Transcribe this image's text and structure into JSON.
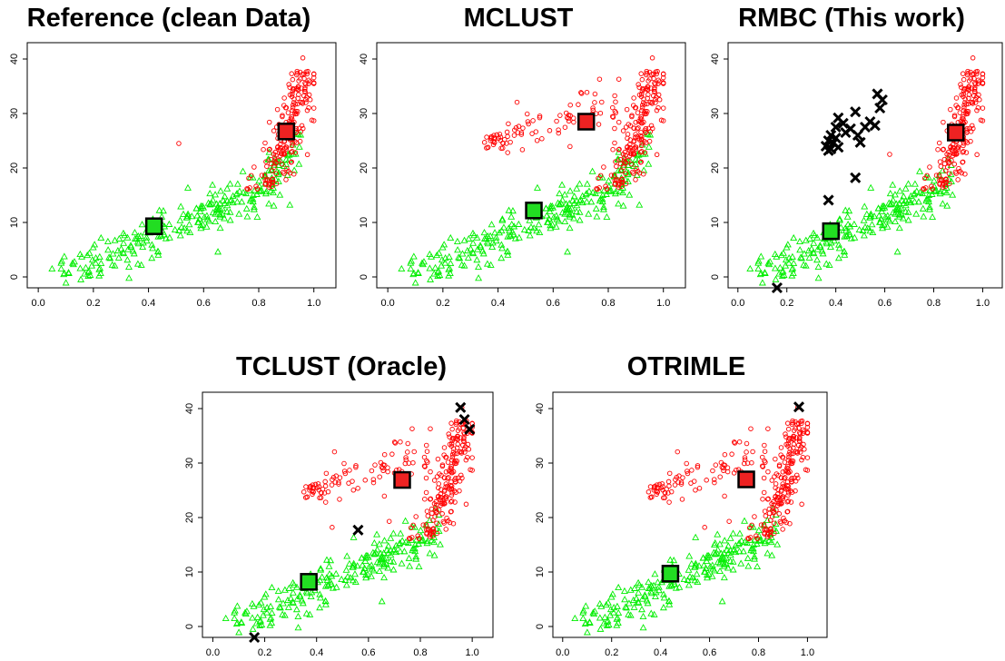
{
  "colors": {
    "cluster1": "#ff0000",
    "cluster2": "#00ee00",
    "center1_fill": "#ee2222",
    "center2_fill": "#22dd22",
    "outlier": "#000000"
  },
  "chart_data": [
    {
      "type": "scatter",
      "title": "Reference  (clean Data)",
      "xlim": [
        -0.04,
        1.08
      ],
      "ylim": [
        -2,
        43
      ],
      "xticks": [
        "0.0",
        "0.2",
        "0.4",
        "0.6",
        "0.8",
        "1.0"
      ],
      "yticks": [
        "0",
        "10",
        "20",
        "30",
        "40"
      ],
      "grid": false,
      "legend": "none",
      "green_cluster": "upper_extent",
      "red_cluster": "right_only",
      "centers": [
        {
          "cluster": "red",
          "x": 0.9,
          "y": 26.7
        },
        {
          "cluster": "green",
          "x": 0.42,
          "y": 9.3
        }
      ],
      "outliers": [],
      "extra_points": [
        {
          "cluster": "red",
          "x": 0.51,
          "y": 24.5
        }
      ]
    },
    {
      "type": "scatter",
      "title": "MCLUST",
      "xlim": [
        -0.04,
        1.08
      ],
      "ylim": [
        -2,
        43
      ],
      "xticks": [
        "0.0",
        "0.2",
        "0.4",
        "0.6",
        "0.8",
        "1.0"
      ],
      "yticks": [
        "0",
        "10",
        "20",
        "30",
        "40"
      ],
      "grid": false,
      "legend": "none",
      "green_cluster": "upper_extent",
      "red_cluster": "with_arc",
      "centers": [
        {
          "cluster": "red",
          "x": 0.72,
          "y": 28.5
        },
        {
          "cluster": "green",
          "x": 0.53,
          "y": 12.2
        }
      ],
      "outliers": [],
      "extra_points": []
    },
    {
      "type": "scatter",
      "title": "RMBC (This work)",
      "xlim": [
        -0.04,
        1.08
      ],
      "ylim": [
        -2,
        43
      ],
      "xticks": [
        "0.0",
        "0.2",
        "0.4",
        "0.6",
        "0.8",
        "1.0"
      ],
      "yticks": [
        "0",
        "10",
        "20",
        "30",
        "40"
      ],
      "grid": false,
      "legend": "none",
      "green_cluster": "lower_only",
      "red_cluster": "right_only",
      "centers": [
        {
          "cluster": "red",
          "x": 0.89,
          "y": 26.5
        },
        {
          "cluster": "green",
          "x": 0.38,
          "y": 8.4
        }
      ],
      "outliers": [
        {
          "x": 0.36,
          "y": 24.0
        },
        {
          "x": 0.37,
          "y": 25.0
        },
        {
          "x": 0.38,
          "y": 23.5
        },
        {
          "x": 0.39,
          "y": 24.6
        },
        {
          "x": 0.4,
          "y": 25.5
        },
        {
          "x": 0.41,
          "y": 23.8
        },
        {
          "x": 0.37,
          "y": 23.2
        },
        {
          "x": 0.38,
          "y": 26.0
        },
        {
          "x": 0.4,
          "y": 27.5
        },
        {
          "x": 0.41,
          "y": 29.2
        },
        {
          "x": 0.43,
          "y": 28.2
        },
        {
          "x": 0.44,
          "y": 26.5
        },
        {
          "x": 0.46,
          "y": 27.2
        },
        {
          "x": 0.48,
          "y": 30.3
        },
        {
          "x": 0.49,
          "y": 26.0
        },
        {
          "x": 0.5,
          "y": 24.7
        },
        {
          "x": 0.52,
          "y": 27.5
        },
        {
          "x": 0.54,
          "y": 28.5
        },
        {
          "x": 0.56,
          "y": 27.8
        },
        {
          "x": 0.57,
          "y": 33.6
        },
        {
          "x": 0.58,
          "y": 31.0
        },
        {
          "x": 0.59,
          "y": 32.5
        },
        {
          "x": 0.37,
          "y": 14.1
        },
        {
          "x": 0.48,
          "y": 18.2
        },
        {
          "x": 0.16,
          "y": -2.0
        }
      ],
      "extra_points": [
        {
          "cluster": "red",
          "x": 0.62,
          "y": 22.5
        }
      ]
    },
    {
      "type": "scatter",
      "title": "TCLUST (Oracle)",
      "xlim": [
        -0.04,
        1.08
      ],
      "ylim": [
        -2,
        43
      ],
      "xticks": [
        "0.0",
        "0.2",
        "0.4",
        "0.6",
        "0.8",
        "1.0"
      ],
      "yticks": [
        "0",
        "10",
        "20",
        "30",
        "40"
      ],
      "grid": false,
      "legend": "none",
      "green_cluster": "lower_only",
      "red_cluster": "with_arc",
      "centers": [
        {
          "cluster": "red",
          "x": 0.73,
          "y": 26.9
        },
        {
          "cluster": "green",
          "x": 0.37,
          "y": 8.2
        }
      ],
      "outliers": [
        {
          "x": 0.56,
          "y": 17.7
        },
        {
          "x": 0.955,
          "y": 40.2
        },
        {
          "x": 0.97,
          "y": 38.0
        },
        {
          "x": 0.99,
          "y": 36.2
        },
        {
          "x": 0.16,
          "y": -2.0
        }
      ],
      "extra_points": [
        {
          "cluster": "red",
          "x": 0.46,
          "y": 18.2
        },
        {
          "cluster": "red",
          "x": 0.68,
          "y": 19.3
        },
        {
          "cluster": "red",
          "x": 0.84,
          "y": 17.5
        }
      ]
    },
    {
      "type": "scatter",
      "title": "OTRIMLE",
      "xlim": [
        -0.04,
        1.08
      ],
      "ylim": [
        -2,
        43
      ],
      "xticks": [
        "0.0",
        "0.2",
        "0.4",
        "0.6",
        "0.8",
        "1.0"
      ],
      "yticks": [
        "0",
        "10",
        "20",
        "30",
        "40"
      ],
      "grid": false,
      "legend": "none",
      "green_cluster": "lower_only",
      "red_cluster": "with_arc",
      "centers": [
        {
          "cluster": "red",
          "x": 0.75,
          "y": 27.0
        },
        {
          "cluster": "green",
          "x": 0.44,
          "y": 9.7
        }
      ],
      "outliers": [
        {
          "x": 0.965,
          "y": 40.3
        }
      ],
      "extra_points": [
        {
          "cluster": "red",
          "x": 0.58,
          "y": 18.2
        },
        {
          "cluster": "red",
          "x": 0.68,
          "y": 19.3
        },
        {
          "cluster": "green",
          "x": 0.62,
          "y": 15.0
        }
      ]
    }
  ]
}
